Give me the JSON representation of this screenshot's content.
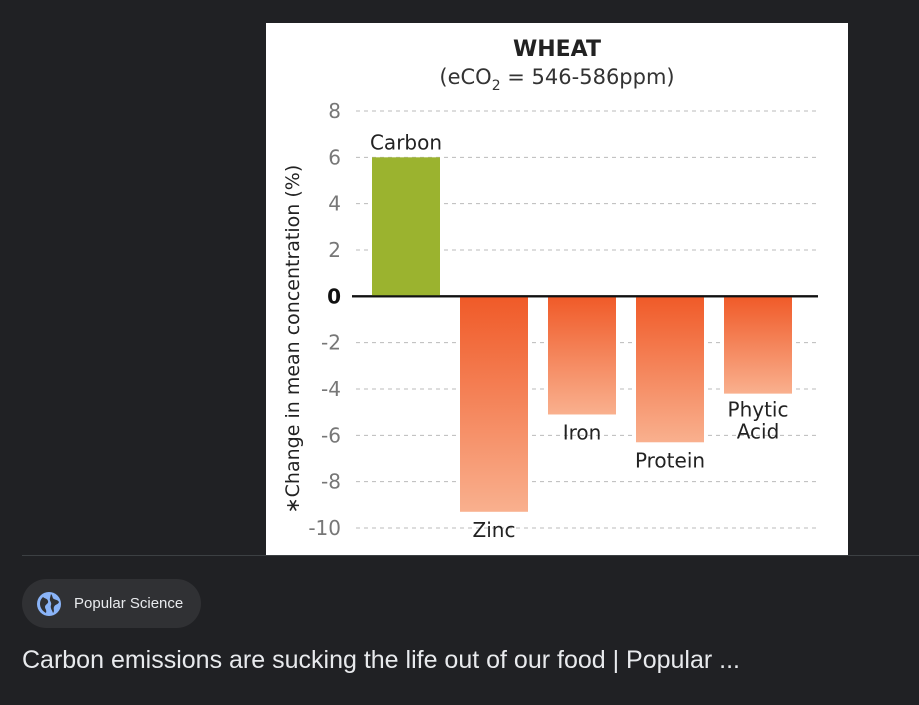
{
  "source": {
    "name": "Popular Science",
    "icon": "globe-icon"
  },
  "result": {
    "title": "Carbon emissions are sucking the life out of our food | Popular ..."
  },
  "colors": {
    "positive_bar": "#9bb32f",
    "negative_top": "#f05a28",
    "negative_bottom": "#f9b08e",
    "axis": "#111111",
    "grid": "#bbbbbb"
  },
  "chart_data": {
    "type": "bar",
    "title": "WHEAT",
    "subtitle_prefix": "(eCO",
    "subtitle_sub": "2",
    "subtitle_suffix": " = 546-586ppm)",
    "ylabel": "∗Change in mean concentration (%)",
    "xlabel": "",
    "ylim": [
      -10,
      8
    ],
    "yticks": [
      8,
      6,
      4,
      2,
      0,
      -2,
      -4,
      -6,
      -8,
      -10
    ],
    "grid": true,
    "categories": [
      "Carbon",
      "Zinc",
      "Iron",
      "Protein",
      "Phytic Acid"
    ],
    "label_lines": [
      [
        "Carbon"
      ],
      [
        "Zinc"
      ],
      [
        "Iron"
      ],
      [
        "Protein"
      ],
      [
        "Phytic",
        "Acid"
      ]
    ],
    "values": [
      6.0,
      -9.3,
      -5.1,
      -6.3,
      -4.2
    ]
  }
}
